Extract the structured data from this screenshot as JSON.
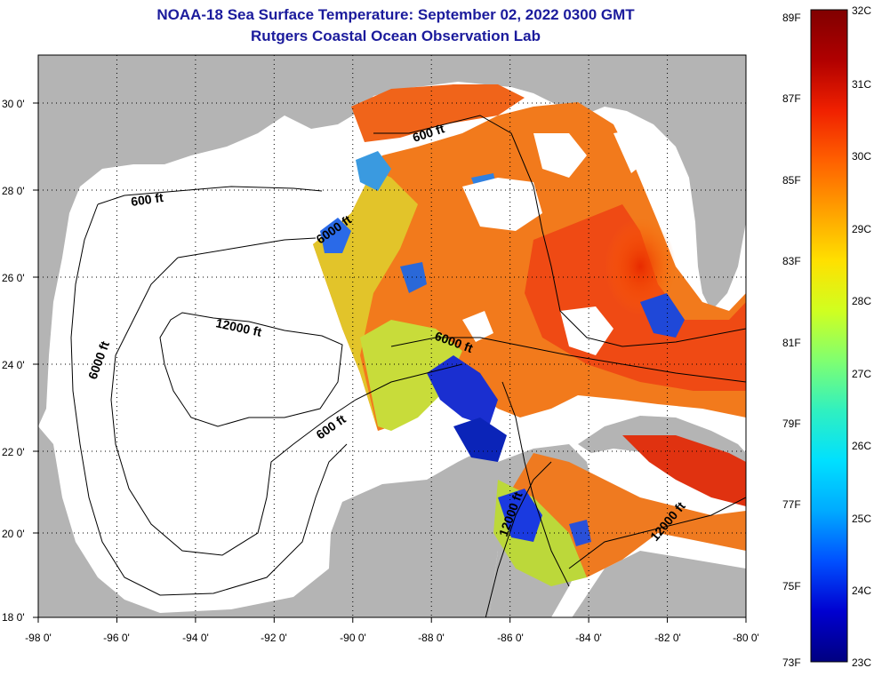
{
  "title": {
    "line1": "NOAA-18 Sea Surface Temperature:  September 02, 2022 0300 GMT",
    "line2": "Rutgers Coastal Ocean Observation Lab"
  },
  "axes": {
    "longitude_ticks": [
      "-98 0'",
      "-96 0'",
      "-94 0'",
      "-92 0'",
      "-90 0'",
      "-88 0'",
      "-86 0'",
      "-84 0'",
      "-82 0'",
      "-80 0'"
    ],
    "latitude_ticks": [
      "30 0'",
      "28 0'",
      "26 0'",
      "24 0'",
      "22 0'",
      "20 0'",
      "18 0'"
    ]
  },
  "contour_labels": [
    "600 ft",
    "600 ft",
    "6000 ft",
    "12000 ft",
    "6000 ft",
    "6000 ft",
    "600 ft",
    "12000 ft",
    "12000 ft"
  ],
  "colorbar": {
    "fahrenheit_labels": [
      "89F",
      "87F",
      "85F",
      "83F",
      "81F",
      "79F",
      "77F",
      "75F",
      "73F"
    ],
    "celsius_labels": [
      "32C",
      "31C",
      "30C",
      "29C",
      "28C",
      "27C",
      "26C",
      "25C",
      "24C",
      "23C"
    ],
    "colors": [
      "#000080",
      "#0000d0",
      "#0050ff",
      "#00aaff",
      "#00e0ff",
      "#30f0c0",
      "#80ff70",
      "#d0ff20",
      "#ffe000",
      "#ffa000",
      "#ff6000",
      "#f02000",
      "#b00000",
      "#800000"
    ]
  },
  "colors": {
    "land": "#b4b4b4",
    "no_data": "#ffffff",
    "title": "#1b1b9c"
  }
}
